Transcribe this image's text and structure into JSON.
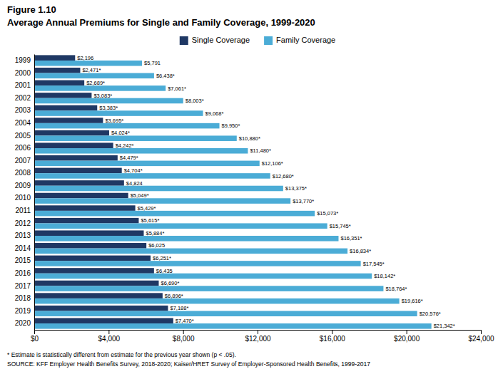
{
  "chart_data": {
    "type": "bar",
    "orientation": "horizontal",
    "title": "Figure 1.10",
    "subtitle": "Average Annual Premiums for Single and Family Coverage, 1999-2020",
    "annotations": [
      "* Estimate is statistically different from estimate for the previous year shown (p < .05).",
      "SOURCE: KFF Employer Health Benefits Survey, 2018-2020; Kaiser/HRET Survey of Employer-Sponsored Health Benefits, 1999-2017"
    ],
    "categories": [
      "1999",
      "2000",
      "2001",
      "2002",
      "2003",
      "2004",
      "2005",
      "2006",
      "2007",
      "2008",
      "2009",
      "2010",
      "2011",
      "2012",
      "2013",
      "2014",
      "2015",
      "2016",
      "2017",
      "2018",
      "2019",
      "2020"
    ],
    "series": [
      {
        "name": "Single Coverage",
        "color": "#1f3864",
        "values": [
          2196,
          2471,
          2689,
          3083,
          3383,
          3695,
          4024,
          4242,
          4479,
          4704,
          4824,
          5049,
          5429,
          5615,
          5884,
          6025,
          6251,
          6435,
          6690,
          6896,
          7188,
          7470
        ],
        "value_labels": [
          "$2,196",
          "$2,471*",
          "$2,689*",
          "$3,083*",
          "$3,383*",
          "$3,695*",
          "$4,024*",
          "$4,242*",
          "$4,479*",
          "$4,704*",
          "$4,824",
          "$5,049*",
          "$5,429*",
          "$5,615*",
          "$5,884*",
          "$6,025",
          "$6,251*",
          "$6,435",
          "$6,690*",
          "$6,896*",
          "$7,188*",
          "$7,470*"
        ]
      },
      {
        "name": "Family Coverage",
        "color": "#4bacd6",
        "values": [
          5791,
          6438,
          7061,
          8003,
          9068,
          9950,
          10880,
          11480,
          12106,
          12680,
          13375,
          13770,
          15073,
          15745,
          16351,
          16834,
          17545,
          18142,
          18764,
          19616,
          20576,
          21342
        ],
        "value_labels": [
          "$5,791",
          "$6,438*",
          "$7,061*",
          "$8,003*",
          "$9,068*",
          "$9,950*",
          "$10,880*",
          "$11,480*",
          "$12,106*",
          "$12,680*",
          "$13,375*",
          "$13,770*",
          "$15,073*",
          "$15,745*",
          "$16,351*",
          "$16,834*",
          "$17,545*",
          "$18,142*",
          "$18,764*",
          "$19,616*",
          "$20,576*",
          "$21,342*"
        ]
      }
    ],
    "xlim": [
      0,
      24000
    ],
    "xticks": [
      {
        "value": 0,
        "label": "$0"
      },
      {
        "value": 4000,
        "label": "$4,000"
      },
      {
        "value": 8000,
        "label": "$8,000"
      },
      {
        "value": 12000,
        "label": "$12,000"
      },
      {
        "value": 16000,
        "label": "$16,000"
      },
      {
        "value": 20000,
        "label": "$20,000"
      },
      {
        "value": 24000,
        "label": "$24,000"
      }
    ],
    "data_labels": true,
    "legend": "top",
    "grid": false
  }
}
